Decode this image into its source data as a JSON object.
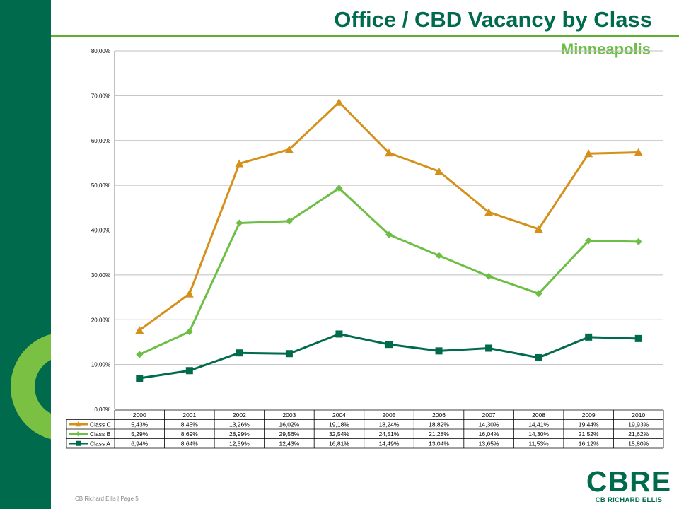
{
  "header": {
    "title": "Office / CBD Vacancy by Class",
    "subtitle": "Minneapolis"
  },
  "footer": {
    "company": "CB Richard Ellis",
    "separator": "|",
    "page": "Page 5"
  },
  "logo": {
    "word": "CBRE",
    "sub": "CB RICHARD ELLIS"
  },
  "colors": {
    "dark_green": "#006A4D",
    "light_green": "#6DBE45",
    "orange": "#D4901A"
  },
  "chart_data": {
    "type": "area",
    "stacked": true,
    "categories": [
      "2000",
      "2001",
      "2002",
      "2003",
      "2004",
      "2005",
      "2006",
      "2007",
      "2008",
      "2009",
      "2010"
    ],
    "ylim": [
      0,
      80
    ],
    "yticks": [
      "0,00%",
      "10,00%",
      "20,00%",
      "30,00%",
      "40,00%",
      "50,00%",
      "60,00%",
      "70,00%",
      "80,00%"
    ],
    "grid": true,
    "legend": "bottom-table",
    "series": [
      {
        "name": "Class C",
        "color": "#D4901A",
        "marker": "triangle",
        "labels": [
          "5,43%",
          "8,45%",
          "13,26%",
          "16,02%",
          "19,18%",
          "18,24%",
          "18,82%",
          "14,30%",
          "14,41%",
          "19,44%",
          "19,93%"
        ],
        "values": [
          5.43,
          8.45,
          13.26,
          16.02,
          19.18,
          18.24,
          18.82,
          14.3,
          14.41,
          19.44,
          19.93
        ]
      },
      {
        "name": "Class B",
        "color": "#6DBE45",
        "marker": "diamond",
        "labels": [
          "5,29%",
          "8,69%",
          "28,99%",
          "29,56%",
          "32,54%",
          "24,51%",
          "21,28%",
          "16,04%",
          "14,30%",
          "21,52%",
          "21,62%"
        ],
        "values": [
          5.29,
          8.69,
          28.99,
          29.56,
          32.54,
          24.51,
          21.28,
          16.04,
          14.3,
          21.52,
          21.62
        ]
      },
      {
        "name": "Class A",
        "color": "#006A4D",
        "marker": "square",
        "labels": [
          "6,94%",
          "8,64%",
          "12,59%",
          "12,43%",
          "16,81%",
          "14,49%",
          "13,04%",
          "13,65%",
          "11,53%",
          "16,12%",
          "15,80%"
        ],
        "values": [
          6.94,
          8.64,
          12.59,
          12.43,
          16.81,
          14.49,
          13.04,
          13.65,
          11.53,
          16.12,
          15.8
        ]
      }
    ]
  }
}
